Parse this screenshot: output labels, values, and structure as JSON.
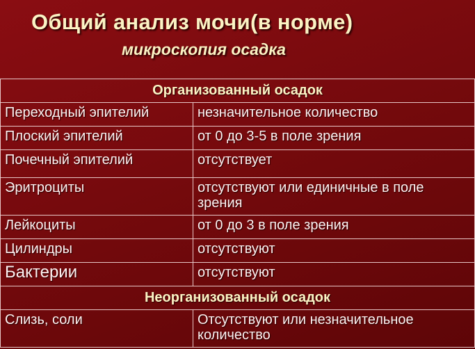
{
  "title": "Общий анализ мочи(в норме)",
  "subtitle": "микроскопия осадка",
  "sections": [
    {
      "header": "Организованный осадок",
      "rows": [
        {
          "name": "Переходный эпителий",
          "value": "незначительное количество"
        },
        {
          "name": "Плоский эпителий",
          "value": "от 0 до 3-5 в поле зрения"
        },
        {
          "name": "Почечный эпителий",
          "value": "отсутствует"
        },
        {
          "name": "Эритроциты",
          "value": "отсутствуют или единичные в поле зрения"
        },
        {
          "name": "Лейкоциты",
          "value": "от 0 до 3 в поле зрения"
        },
        {
          "name": "Цилиндры",
          "value": "отсутствуют"
        },
        {
          "name": "Бактерии",
          "value": "отсутствуют"
        }
      ]
    },
    {
      "header": "Неорганизованный осадок",
      "rows": [
        {
          "name": "Слизь, соли",
          "value": "Отсутствуют или незначительное количество"
        }
      ]
    }
  ]
}
